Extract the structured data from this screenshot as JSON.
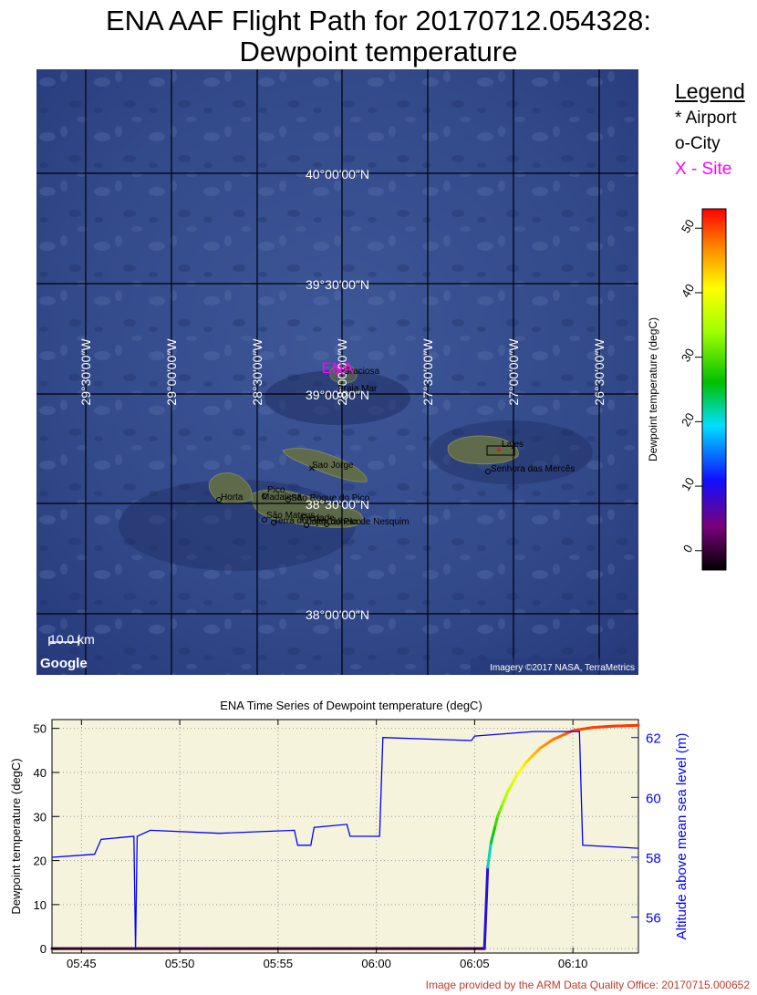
{
  "title_line1": "ENA AAF Flight Path for 20170712.054328:",
  "title_line2": "Dewpoint temperature",
  "legend": {
    "heading": "Legend",
    "airport": "* Airport",
    "city": "o-City",
    "site": "X - Site",
    "site_color": "#ff00ff"
  },
  "map": {
    "lat_lines": [
      "40°00′00″N",
      "39°30′00″N",
      "39°00′00″N",
      "38°30′00″N",
      "38°00′00″N"
    ],
    "lon_lines": [
      "29°30′00″W",
      "29°00′00″W",
      "28°30′00″W",
      "28°00′00″W",
      "27°30′00″W",
      "27°00′00″W",
      "26°30′00″W"
    ],
    "scale_label": "10.0 km",
    "google_logo": "Google",
    "imagery_credit": "Imagery ©2017 NASA, TerraMetrics",
    "site_label": "ENA",
    "places": [
      {
        "name": "Graciosa"
      },
      {
        "name": "Praia Mar"
      },
      {
        "name": "Sao Jorge"
      },
      {
        "name": "Horta"
      },
      {
        "name": "Pico"
      },
      {
        "name": "Madalena"
      },
      {
        "name": "São Roque do Pico"
      },
      {
        "name": "São Mateus"
      },
      {
        "name": "Terra do Pão"
      },
      {
        "name": "Piedade"
      },
      {
        "name": "Lajes do Pico"
      },
      {
        "name": "Calheta de Nesquim"
      },
      {
        "name": "Lajes"
      },
      {
        "name": "Senhora das Mercês"
      }
    ]
  },
  "colorbar": {
    "label": "Dewpoint temperature  (degC)",
    "ticks": [
      0,
      10,
      20,
      30,
      40,
      50
    ],
    "min": -3,
    "max": 53
  },
  "chart_data": {
    "type": "line",
    "title": "ENA Time Series of Dewpoint temperature (degC)",
    "ylabel": "Dewpoint temperature (degC)",
    "y2label": "Altitude above mean sea level (m)",
    "x_ticks": [
      "05:45",
      "05:50",
      "05:55",
      "06:00",
      "06:05",
      "06:10"
    ],
    "xlim": [
      "05:43:30",
      "06:13:20"
    ],
    "ylim": [
      -1,
      52
    ],
    "y_ticks": [
      0,
      10,
      20,
      30,
      40,
      50
    ],
    "y2lim": [
      54.8,
      62.6
    ],
    "y2_ticks": [
      56,
      58,
      60,
      62
    ],
    "grid": true,
    "series": [
      {
        "name": "",
        "axis": "left",
        "colored_by_value": true,
        "x": [
          "05:43:30",
          "05:47:40",
          "05:55:00",
          "06:05:30",
          "06:05:40",
          "06:05:50",
          "06:06:10",
          "06:06:40",
          "06:07:10",
          "06:07:40",
          "06:08:20",
          "06:09:00",
          "06:10:00",
          "06:11:00",
          "06:12:00",
          "06:13:20"
        ],
        "values": [
          0,
          0,
          0,
          0,
          18.5,
          24,
          30,
          35.5,
          39.5,
          42.5,
          45.5,
          47.5,
          49.5,
          50.2,
          50.5,
          50.7
        ]
      },
      {
        "name": "",
        "axis": "right",
        "color": "#0000ff",
        "x": [
          "05:43:30",
          "05:45:40",
          "05:46:00",
          "05:47:40",
          "05:47:45",
          "05:47:50",
          "05:48:30",
          "05:52:00",
          "05:55:50",
          "05:56:00",
          "05:56:40",
          "05:56:50",
          "05:58:30",
          "05:58:40",
          "06:00:10",
          "06:00:20",
          "06:04:50",
          "06:05:00",
          "06:08:00",
          "06:10:20",
          "06:10:30",
          "06:13:20"
        ],
        "values": [
          58.0,
          58.1,
          58.6,
          58.7,
          54.9,
          58.7,
          58.9,
          58.8,
          58.9,
          58.4,
          58.4,
          59.0,
          59.1,
          58.7,
          58.7,
          62.0,
          61.9,
          62.05,
          62.2,
          62.2,
          58.4,
          58.3
        ]
      }
    ]
  },
  "credit": "Image provided by the ARM Data Quality Office: 20170715.000652"
}
